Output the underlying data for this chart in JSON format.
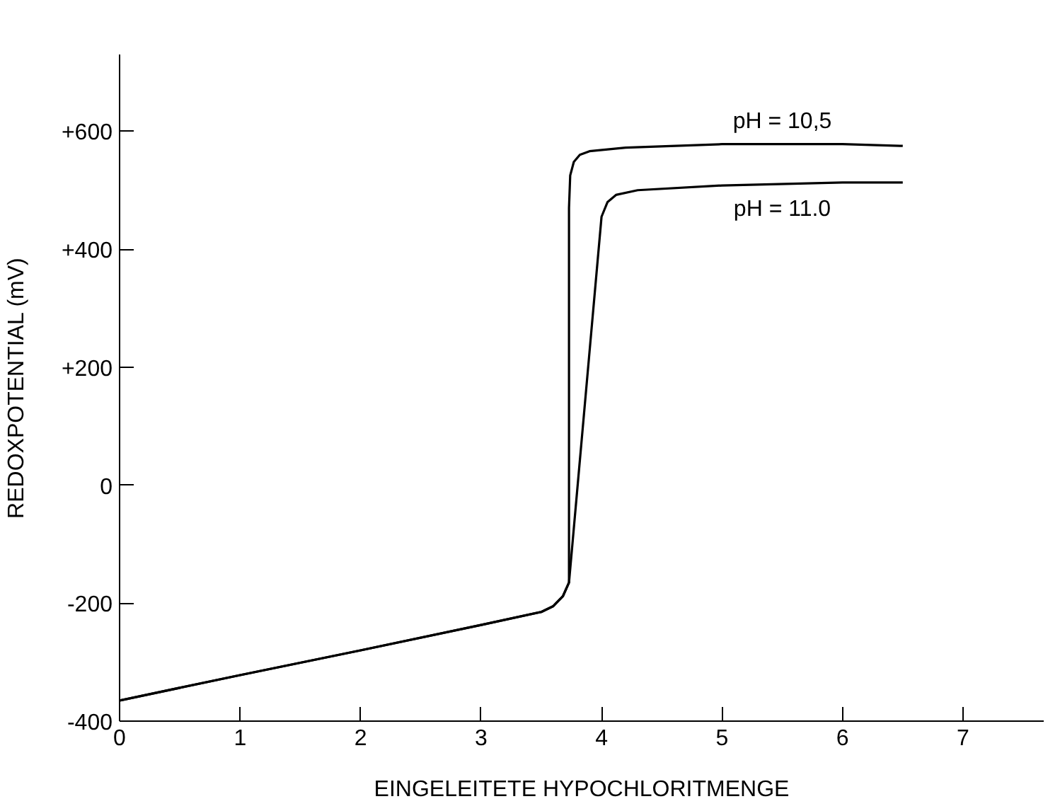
{
  "chart_data": {
    "type": "line",
    "xlabel": "EINGELEITETE HYPOCHLORITMENGE",
    "ylabel": "REDOXPOTENTIAL (mV)",
    "xlim": [
      0,
      7.67
    ],
    "ylim": [
      -400,
      730
    ],
    "xticks": [
      0,
      1,
      2,
      3,
      4,
      5,
      6,
      7
    ],
    "yticks": [
      -400,
      -200,
      0,
      {
        "value": 200,
        "label": "+200"
      },
      {
        "value": 400,
        "label": "+400"
      },
      {
        "value": 600,
        "label": "+600"
      }
    ],
    "grid": false,
    "marker": "none",
    "line_style": "solid",
    "series": [
      {
        "name": "pH = 10,5",
        "color": "#000000",
        "x": [
          0,
          1,
          2,
          3,
          3.5,
          3.6,
          3.68,
          3.73,
          3.73,
          3.74,
          3.77,
          3.82,
          3.9,
          4.2,
          5,
          6,
          6.5
        ],
        "values": [
          -365,
          -322,
          -280,
          -237,
          -215,
          -205,
          -188,
          -165,
          470,
          525,
          548,
          560,
          566,
          572,
          578,
          578,
          575
        ]
      },
      {
        "name": "pH = 11.0",
        "color": "#000000",
        "x": [
          0,
          1,
          2,
          3,
          3.5,
          3.6,
          3.68,
          3.73,
          4.0,
          4.05,
          4.12,
          4.3,
          5,
          6,
          6.5
        ],
        "values": [
          -365,
          -322,
          -280,
          -237,
          -215,
          -205,
          -188,
          -165,
          455,
          480,
          492,
          500,
          508,
          513,
          513
        ]
      }
    ]
  }
}
